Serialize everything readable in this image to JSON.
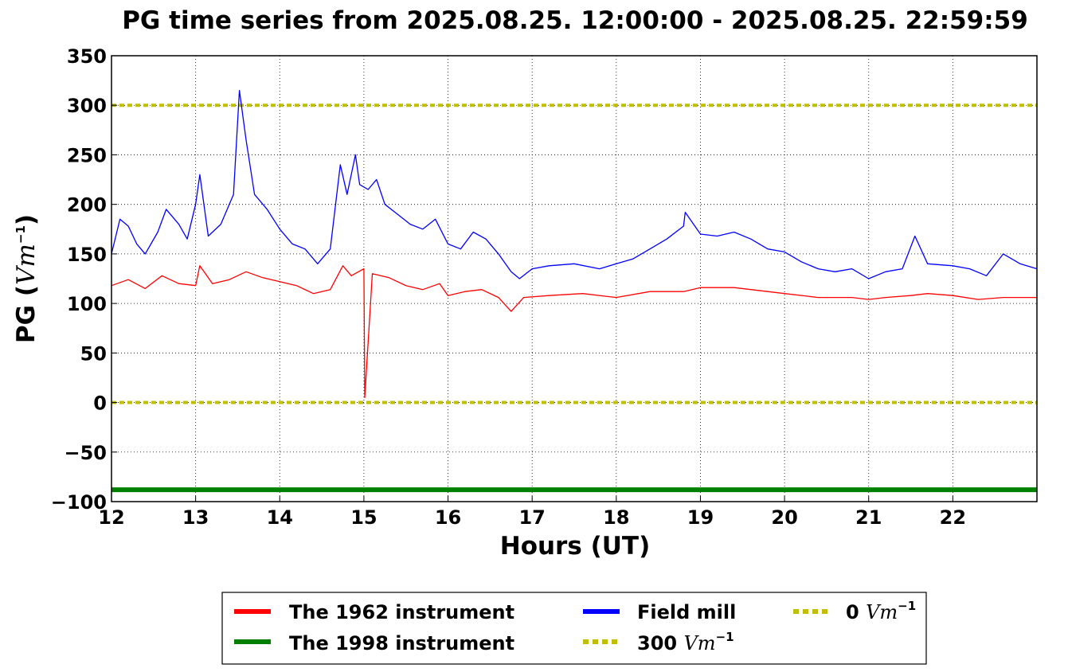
{
  "chart_data": {
    "type": "line",
    "title": "PG time series from 2025.08.25. 12:00:00 - 2025.08.25. 22:59:59",
    "xlabel": "Hours (UT)",
    "ylabel_main": "PG (",
    "ylabel_unit": "Vm",
    "ylabel_sup": "−1",
    "ylabel_close": ")",
    "xlim": [
      12,
      23
    ],
    "ylim": [
      -100,
      350
    ],
    "xticks": [
      12,
      13,
      14,
      15,
      16,
      17,
      18,
      19,
      20,
      21,
      22
    ],
    "xtick_labels": [
      "12",
      "13",
      "14",
      "15",
      "16",
      "17",
      "18",
      "19",
      "20",
      "21",
      "22"
    ],
    "yticks": [
      -100,
      -50,
      0,
      50,
      100,
      150,
      200,
      250,
      300,
      350
    ],
    "ytick_labels": [
      "−100",
      "−50",
      "0",
      "50",
      "100",
      "150",
      "200",
      "250",
      "300",
      "350"
    ],
    "grid": true,
    "legend_position": "below",
    "series": [
      {
        "name": "The 1962 instrument",
        "color": "#ff0000",
        "x": [
          12.0,
          12.2,
          12.4,
          12.6,
          12.8,
          13.0,
          13.05,
          13.2,
          13.4,
          13.6,
          13.8,
          14.0,
          14.2,
          14.4,
          14.6,
          14.75,
          14.85,
          15.0,
          15.01,
          15.1,
          15.3,
          15.5,
          15.7,
          15.9,
          16.0,
          16.2,
          16.4,
          16.6,
          16.75,
          16.9,
          17.2,
          17.6,
          18.0,
          18.4,
          18.8,
          19.0,
          19.4,
          19.8,
          20.0,
          20.4,
          20.8,
          21.0,
          21.2,
          21.5,
          21.7,
          22.0,
          22.3,
          22.6,
          23.0
        ],
        "y": [
          118,
          124,
          115,
          128,
          120,
          118,
          138,
          120,
          124,
          132,
          126,
          122,
          118,
          110,
          114,
          138,
          128,
          135,
          5,
          130,
          126,
          118,
          114,
          120,
          108,
          112,
          114,
          106,
          92,
          106,
          108,
          110,
          106,
          112,
          112,
          116,
          116,
          112,
          110,
          106,
          106,
          104,
          106,
          108,
          110,
          108,
          104,
          106,
          106
        ]
      },
      {
        "name": "The 1998 instrument",
        "color": "#008000",
        "x": [
          12.0,
          23.0
        ],
        "y": [
          -88,
          -88
        ]
      },
      {
        "name": "Field mill",
        "color": "#0000ff",
        "x": [
          12.0,
          12.1,
          12.2,
          12.3,
          12.4,
          12.55,
          12.65,
          12.8,
          12.9,
          13.0,
          13.05,
          13.15,
          13.3,
          13.45,
          13.52,
          13.6,
          13.7,
          13.85,
          14.0,
          14.15,
          14.3,
          14.45,
          14.6,
          14.72,
          14.8,
          14.9,
          14.95,
          15.05,
          15.15,
          15.25,
          15.4,
          15.55,
          15.7,
          15.85,
          16.0,
          16.15,
          16.3,
          16.45,
          16.6,
          16.75,
          16.85,
          17.0,
          17.2,
          17.5,
          17.8,
          18.0,
          18.2,
          18.4,
          18.6,
          18.8,
          18.82,
          19.0,
          19.2,
          19.4,
          19.6,
          19.8,
          20.0,
          20.2,
          20.4,
          20.6,
          20.8,
          21.0,
          21.2,
          21.4,
          21.55,
          21.7,
          22.0,
          22.2,
          22.4,
          22.6,
          22.8,
          23.0
        ],
        "y": [
          150,
          185,
          178,
          160,
          150,
          172,
          195,
          180,
          165,
          200,
          230,
          168,
          180,
          210,
          315,
          265,
          210,
          195,
          175,
          160,
          155,
          140,
          155,
          240,
          210,
          250,
          220,
          215,
          225,
          200,
          190,
          180,
          175,
          185,
          160,
          155,
          172,
          165,
          150,
          132,
          125,
          135,
          138,
          140,
          135,
          140,
          145,
          155,
          165,
          178,
          192,
          170,
          168,
          172,
          165,
          155,
          152,
          142,
          135,
          132,
          135,
          125,
          132,
          135,
          168,
          140,
          138,
          135,
          128,
          150,
          140,
          135
        ]
      }
    ],
    "reference_lines": [
      {
        "name": "300",
        "unit": "Vm",
        "sup": "−1",
        "value": 300,
        "color": "#bfbf00"
      },
      {
        "name": "0",
        "unit": "Vm",
        "sup": "−1",
        "value": 0,
        "color": "#bfbf00"
      }
    ]
  }
}
